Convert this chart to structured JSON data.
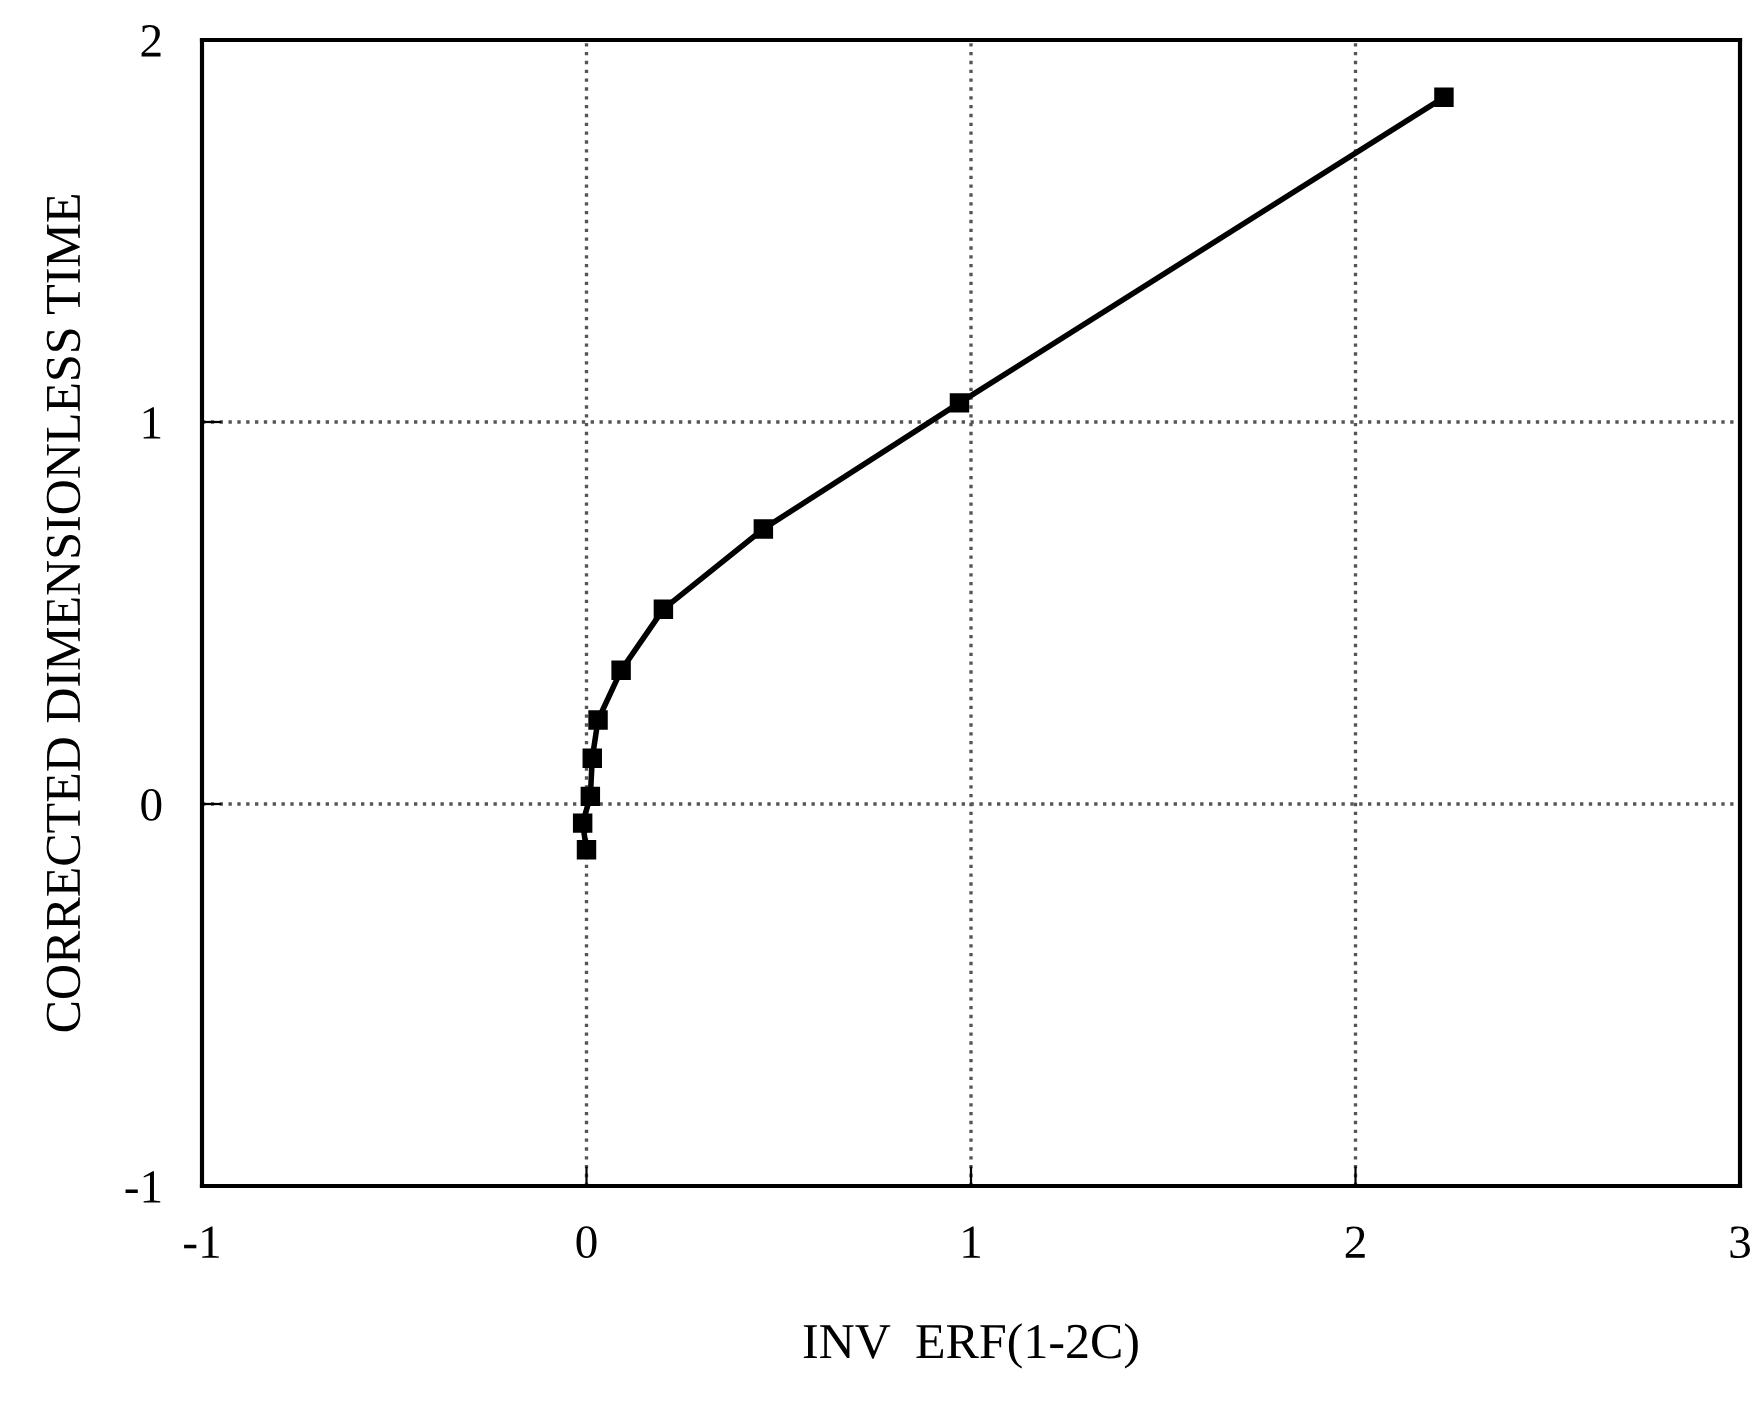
{
  "chart_data": {
    "type": "line",
    "xlabel": "INV  ERF(1-2C)",
    "ylabel": "CORRECTED DIMENSIONLESS TIME",
    "x": [
      0.0,
      -0.01,
      0.01,
      0.015,
      0.03,
      0.09,
      0.2,
      0.46,
      0.97,
      2.23
    ],
    "series": [
      {
        "color": "#000000",
        "values": [
          -0.12,
          -0.05,
          0.02,
          0.12,
          0.22,
          0.35,
          0.51,
          0.72,
          1.05,
          1.85
        ]
      }
    ],
    "xlim": [
      -1,
      3
    ],
    "ylim": [
      -1,
      2
    ],
    "xticks": [
      -1,
      0,
      1,
      2,
      3
    ],
    "yticks": [
      -1,
      0,
      1,
      2
    ],
    "grid": true,
    "marker": "square",
    "line_style": "solid"
  }
}
